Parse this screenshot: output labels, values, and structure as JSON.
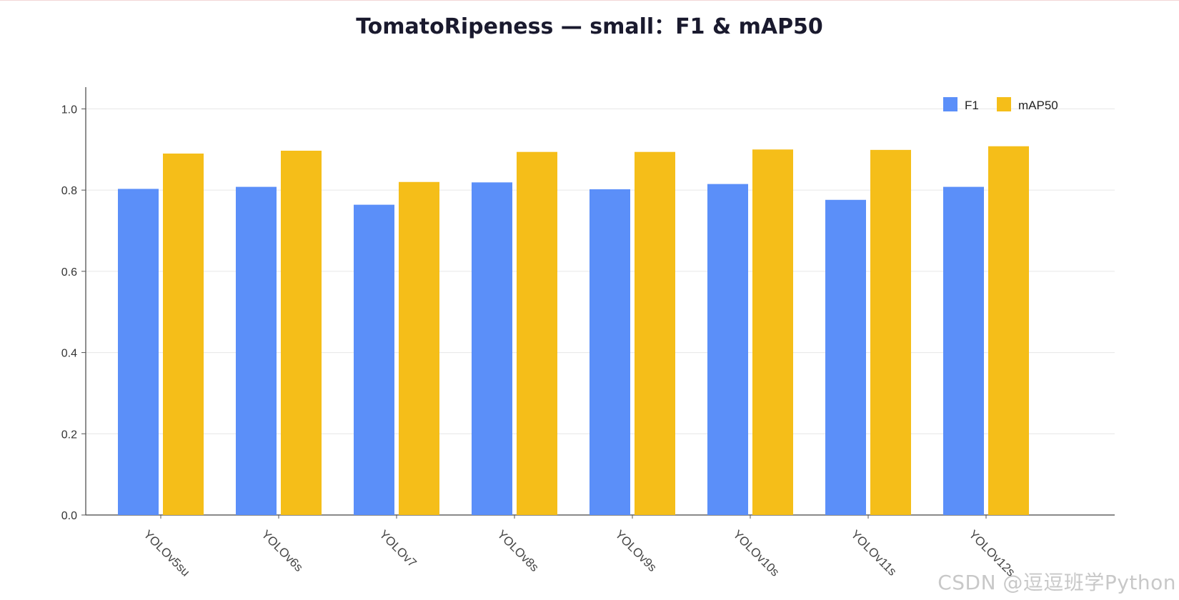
{
  "chart_data": {
    "type": "bar",
    "title": "TomatoRipeness — small：F1 & mAP50",
    "xlabel": "",
    "ylabel": "",
    "ylim": [
      0,
      1.05
    ],
    "yticks": [
      0.0,
      0.2,
      0.4,
      0.6,
      0.8,
      1.0
    ],
    "ytick_labels": [
      "0.0",
      "0.2",
      "0.4",
      "0.6",
      "0.8",
      "1.0"
    ],
    "categories": [
      "YOLOv5su",
      "YOLOv6s",
      "YOLOv7",
      "YOLOv8s",
      "YOLOv9s",
      "YOLOv10s",
      "YOLOv11s",
      "YOLOv12s"
    ],
    "series": [
      {
        "name": "F1",
        "color": "#5b8ff9",
        "values": [
          0.803,
          0.808,
          0.764,
          0.819,
          0.802,
          0.815,
          0.776,
          0.808
        ]
      },
      {
        "name": "mAP50",
        "color": "#f5be19",
        "values": [
          0.89,
          0.897,
          0.82,
          0.894,
          0.894,
          0.9,
          0.899,
          0.908
        ]
      }
    ],
    "grid": true,
    "legend_position": "top-right"
  },
  "watermark": "CSDN @逗逗班学Python"
}
